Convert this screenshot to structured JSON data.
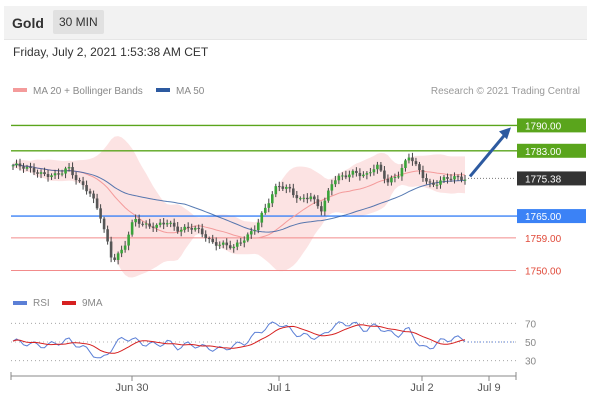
{
  "header": {
    "instrument": "Gold",
    "timeframe": "30 MIN"
  },
  "date_line": "Friday, July 2, 2021 1:53:38 AM CET",
  "legend": {
    "items": [
      {
        "label": "MA 20 + Bollinger Bands",
        "color": "#f49b9b"
      },
      {
        "label": "MA 50",
        "color": "#2d5aa0"
      }
    ],
    "copyright": "Research © 2021 Trading Central"
  },
  "rsi_legend": {
    "items": [
      {
        "label": "RSI",
        "color": "#5b7fd6"
      },
      {
        "label": "9MA",
        "color": "#d62020"
      }
    ]
  },
  "chart_data": [
    {
      "type": "candlestick",
      "instrument": "Gold",
      "interval": "30 MIN",
      "x_ticks": [
        "Jun 30",
        "Jul 1",
        "Jul 2",
        "Jul 9"
      ],
      "ylim": [
        1746,
        1797
      ],
      "levels": [
        {
          "label": "1790.00",
          "value": 1790.0,
          "kind": "resistance",
          "color": "#5aa51c"
        },
        {
          "label": "1783.00",
          "value": 1783.0,
          "kind": "resistance",
          "color": "#5aa51c"
        },
        {
          "label": "1775.38",
          "value": 1775.38,
          "kind": "last",
          "color": "#333333"
        },
        {
          "label": "1765.00",
          "value": 1765.0,
          "kind": "pivot",
          "color": "#3b82f6"
        },
        {
          "label": "1759.00",
          "value": 1759.0,
          "kind": "support",
          "color": "#f28b8b"
        },
        {
          "label": "1750.00",
          "value": 1750.0,
          "kind": "support",
          "color": "#f28b8b"
        }
      ],
      "target_arrow": {
        "from": 1775.38,
        "to": 1790.0
      },
      "price_anchors": [
        1779.0,
        1778.2,
        1777.6,
        1776.4,
        1775.8,
        1778.6,
        1774.5,
        1771.0,
        1764.5,
        1753.0,
        1755.5,
        1764.3,
        1762.8,
        1762.0,
        1763.2,
        1761.5,
        1761.8,
        1760.6,
        1758.0,
        1757.2,
        1756.0,
        1759.0,
        1762.0,
        1767.5,
        1773.8,
        1772.8,
        1769.0,
        1770.5,
        1767.0,
        1774.5,
        1776.0,
        1777.5,
        1775.8,
        1778.8,
        1774.8,
        1776.5,
        1781.5,
        1777.0,
        1773.2,
        1774.8,
        1776.0,
        1775.5
      ]
    },
    {
      "type": "line",
      "name": "RSI panel",
      "y_ticks": [
        70,
        50,
        30
      ],
      "ylim": [
        20,
        80
      ],
      "rsi_anchors": [
        51,
        49,
        47,
        46,
        49,
        52,
        46,
        40,
        30,
        44,
        55,
        52,
        48,
        47,
        50,
        44,
        48,
        45,
        43,
        42,
        46,
        49,
        58,
        66,
        71,
        64,
        57,
        56,
        55,
        67,
        70,
        69,
        63,
        68,
        60,
        58,
        64,
        43,
        45,
        52,
        54,
        53
      ]
    }
  ]
}
